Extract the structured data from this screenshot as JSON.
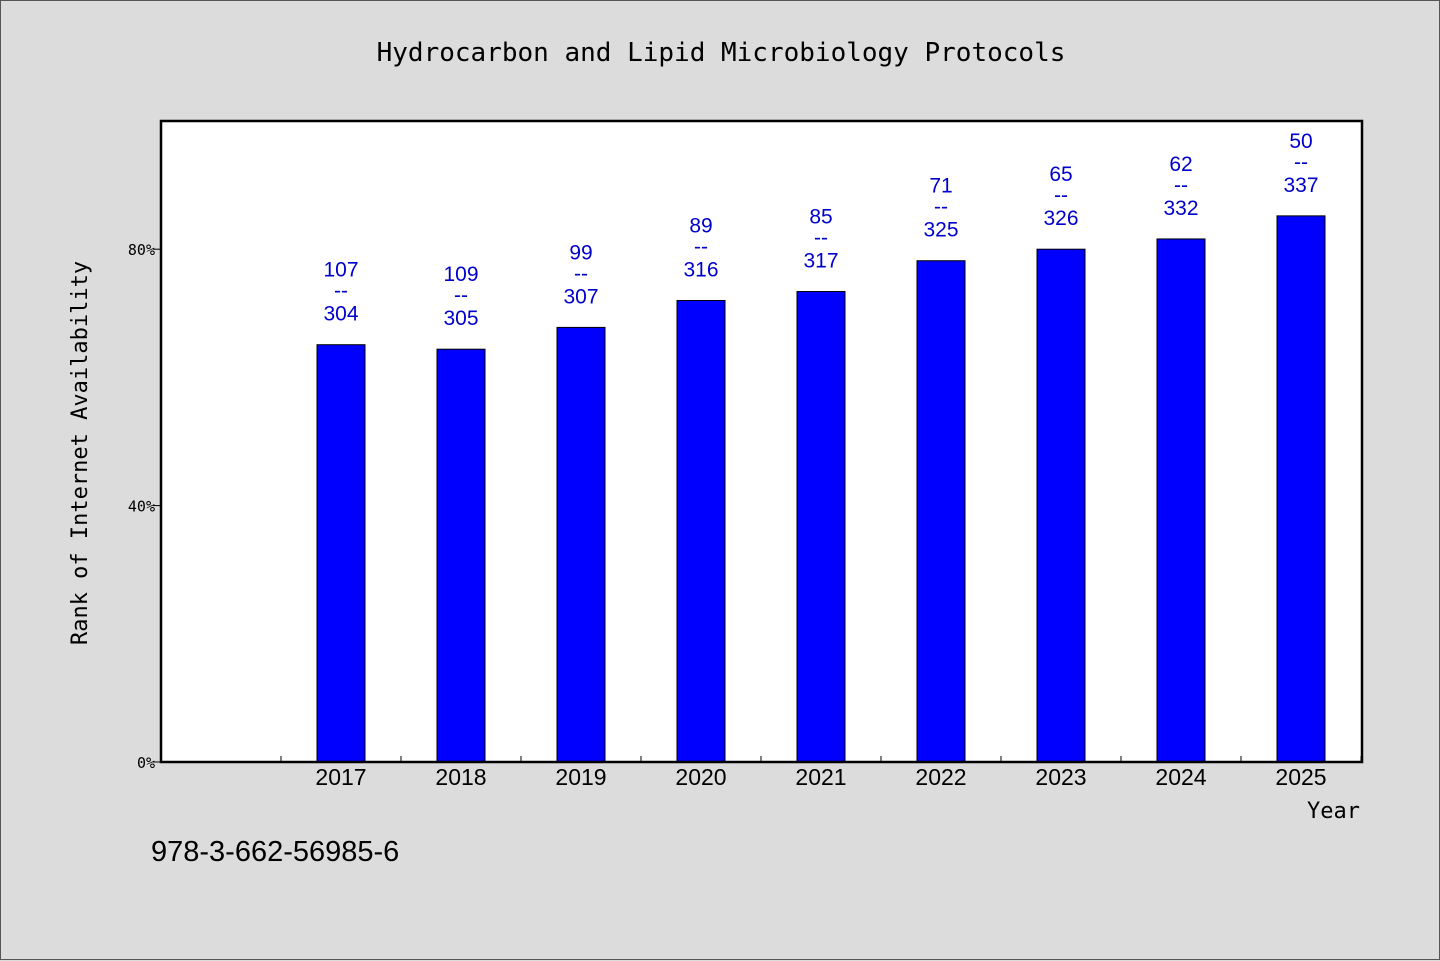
{
  "chart_data": {
    "type": "bar",
    "title": "Hydrocarbon and Lipid Microbiology Protocols",
    "xlabel": "Year",
    "ylabel": "Rank of Internet Availability",
    "categories": [
      "2017",
      "2018",
      "2019",
      "2020",
      "2021",
      "2022",
      "2023",
      "2024",
      "2025"
    ],
    "values": [
      65.1,
      64.4,
      67.8,
      72.0,
      73.4,
      78.2,
      80.0,
      81.6,
      85.2
    ],
    "bar_labels": [
      {
        "top": "107",
        "bottom": "304"
      },
      {
        "top": "109",
        "bottom": "305"
      },
      {
        "top": "99",
        "bottom": "307"
      },
      {
        "top": "89",
        "bottom": "316"
      },
      {
        "top": "85",
        "bottom": "317"
      },
      {
        "top": "71",
        "bottom": "325"
      },
      {
        "top": "65",
        "bottom": "326"
      },
      {
        "top": "62",
        "bottom": "332"
      },
      {
        "top": "50",
        "bottom": "337"
      }
    ],
    "label_separator": "--",
    "yticks": [
      0,
      40,
      80
    ],
    "ytick_labels": [
      "0%",
      "40%",
      "80%"
    ],
    "ylim": [
      0,
      100
    ],
    "grid": false,
    "legend": "none",
    "bar_color": "#0000ff",
    "label_color": "#0000cc",
    "plot_background": "#ffffff"
  },
  "footer": {
    "isbn": "978-3-662-56985-6"
  }
}
